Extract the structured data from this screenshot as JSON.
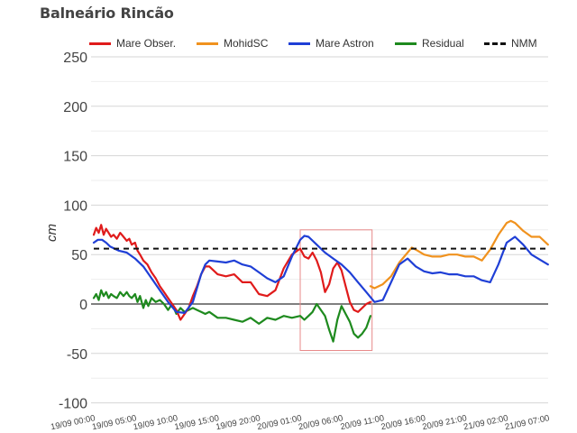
{
  "title": "Balneário Rincão",
  "legend": [
    {
      "label": "Mare Obser.",
      "color": "#e01b1b",
      "style": "solid"
    },
    {
      "label": "MohidSC",
      "color": "#f0921e",
      "style": "solid"
    },
    {
      "label": "Mare Astron",
      "color": "#1f3fd6",
      "style": "solid"
    },
    {
      "label": "Residual",
      "color": "#1e8a1e",
      "style": "solid"
    },
    {
      "label": "NMM",
      "color": "#111111",
      "style": "dashed"
    }
  ],
  "colors": {
    "mare_obser": "#e01b1b",
    "mohidsc": "#f0921e",
    "mare_astron": "#1f3fd6",
    "residual": "#1e8a1e",
    "nmm": "#111111",
    "highlight_box": "#e88a8a",
    "gridline": "#e0e0e0",
    "zero_line": "#333333"
  },
  "chart_data": {
    "type": "line",
    "title": "Balneário Rincão",
    "xlabel": "",
    "ylabel": "cm",
    "ylim": [
      -100,
      250
    ],
    "yticks": [
      250,
      200,
      150,
      100,
      50,
      0,
      -50,
      -100
    ],
    "xticks": [
      "19/09 00:00",
      "19/09 05:00",
      "19/09 10:00",
      "19/09 15:00",
      "19/09 20:00",
      "20/09 01:00",
      "20/09 06:00",
      "20/09 11:00",
      "20/09 16:00",
      "20/09 21:00",
      "21/09 02:00",
      "21/09 07:00"
    ],
    "x_unit": "hours since 19/09 00:00",
    "grid": true,
    "legend_position": "top",
    "nmm_level": 56,
    "highlight_box": {
      "x_start_h": 25,
      "x_end_h": 33.7,
      "y_top": 75,
      "y_bottom": -47
    },
    "series": [
      {
        "name": "Mare Obser.",
        "x": [
          0,
          0.3,
          0.6,
          0.9,
          1.2,
          1.5,
          1.8,
          2.1,
          2.4,
          2.8,
          3.2,
          3.6,
          4.0,
          4.3,
          4.6,
          5.0,
          5.3,
          5.6,
          6.0,
          6.5,
          7.0,
          7.5,
          8.0,
          8.5,
          9.0,
          9.5,
          10.0,
          10.5,
          11.0,
          11.5,
          12.0,
          12.5,
          13.0,
          13.5,
          14.0,
          15.0,
          16.0,
          17.0,
          18.0,
          19.0,
          20.0,
          21.0,
          22.0,
          23.0,
          24.0,
          25.0,
          25.5,
          26.0,
          26.5,
          27.0,
          27.5,
          28.0,
          28.5,
          29.0,
          29.5,
          30.0,
          30.5,
          31.0,
          31.5,
          32.0,
          32.5,
          33.0,
          33.5
        ],
        "values": [
          70,
          77,
          72,
          80,
          70,
          76,
          72,
          68,
          70,
          66,
          72,
          68,
          64,
          66,
          60,
          62,
          54,
          50,
          44,
          40,
          32,
          26,
          18,
          12,
          6,
          0,
          -6,
          -16,
          -10,
          -4,
          8,
          18,
          30,
          38,
          38,
          30,
          28,
          30,
          22,
          22,
          10,
          8,
          14,
          36,
          50,
          56,
          48,
          46,
          52,
          44,
          32,
          12,
          20,
          36,
          42,
          34,
          18,
          2,
          -6,
          -8,
          -4,
          0,
          2
        ]
      },
      {
        "name": "MohidSC",
        "x": [
          33.5,
          34.0,
          35.0,
          36.0,
          37.0,
          38.0,
          38.5,
          39.0,
          40.0,
          41.0,
          42.0,
          43.0,
          44.0,
          45.0,
          46.0,
          47.0,
          48.0,
          49.0,
          50.0,
          50.5,
          51.0,
          52.0,
          53.0,
          54.0,
          55.0
        ],
        "values": [
          18,
          16,
          20,
          28,
          42,
          52,
          57,
          55,
          50,
          48,
          48,
          50,
          50,
          48,
          48,
          44,
          55,
          70,
          82,
          84,
          82,
          74,
          68,
          68,
          60
        ]
      },
      {
        "name": "Mare Astron",
        "x": [
          0,
          0.5,
          1.0,
          1.5,
          2.0,
          3.0,
          4.0,
          5.0,
          6.0,
          7.0,
          8.0,
          9.0,
          10.0,
          11.0,
          12.0,
          13.0,
          13.5,
          14.0,
          15.0,
          16.0,
          17.0,
          18.0,
          19.0,
          20.0,
          21.0,
          22.0,
          23.0,
          24.0,
          25.0,
          25.5,
          26.0,
          27.0,
          28.0,
          29.0,
          30.0,
          31.0,
          32.0,
          33.0,
          34.0,
          35.0,
          36.0,
          37.0,
          38.0,
          39.0,
          40.0,
          41.0,
          42.0,
          43.0,
          44.0,
          45.0,
          46.0,
          47.0,
          48.0,
          49.0,
          50.0,
          51.0,
          52.0,
          53.0,
          54.0,
          55.0
        ],
        "values": [
          62,
          65,
          65,
          62,
          58,
          54,
          52,
          46,
          38,
          26,
          14,
          2,
          -8,
          -9,
          2,
          30,
          40,
          44,
          43,
          42,
          44,
          40,
          38,
          32,
          26,
          22,
          28,
          48,
          65,
          69,
          68,
          60,
          52,
          46,
          40,
          32,
          22,
          12,
          2,
          4,
          22,
          40,
          46,
          38,
          33,
          31,
          32,
          30,
          30,
          28,
          28,
          24,
          22,
          40,
          62,
          68,
          60,
          50,
          45,
          40
        ]
      },
      {
        "name": "Residual",
        "x": [
          0,
          0.3,
          0.6,
          0.9,
          1.2,
          1.5,
          1.8,
          2.1,
          2.4,
          2.8,
          3.2,
          3.6,
          4.0,
          4.3,
          4.6,
          5.0,
          5.3,
          5.6,
          6.0,
          6.3,
          6.6,
          7.0,
          7.5,
          8.0,
          8.5,
          9.0,
          9.5,
          10.0,
          10.5,
          11.0,
          11.5,
          12.0,
          12.5,
          13.0,
          13.5,
          14.0,
          15.0,
          16.0,
          17.0,
          18.0,
          19.0,
          20.0,
          21.0,
          22.0,
          23.0,
          24.0,
          25.0,
          25.5,
          26.0,
          26.5,
          27.0,
          27.5,
          28.0,
          28.5,
          29.0,
          29.5,
          30.0,
          30.5,
          31.0,
          31.5,
          32.0,
          32.5,
          33.0,
          33.5
        ],
        "values": [
          6,
          10,
          4,
          14,
          8,
          12,
          6,
          10,
          8,
          6,
          12,
          8,
          12,
          8,
          6,
          10,
          2,
          8,
          -4,
          4,
          -2,
          6,
          2,
          4,
          0,
          -6,
          0,
          -10,
          -4,
          -8,
          -6,
          -4,
          -6,
          -8,
          -10,
          -8,
          -14,
          -14,
          -16,
          -18,
          -14,
          -20,
          -14,
          -16,
          -12,
          -14,
          -12,
          -16,
          -12,
          -8,
          0,
          -6,
          -12,
          -26,
          -38,
          -16,
          -2,
          -10,
          -18,
          -30,
          -34,
          -30,
          -24,
          -12
        ]
      }
    ]
  }
}
